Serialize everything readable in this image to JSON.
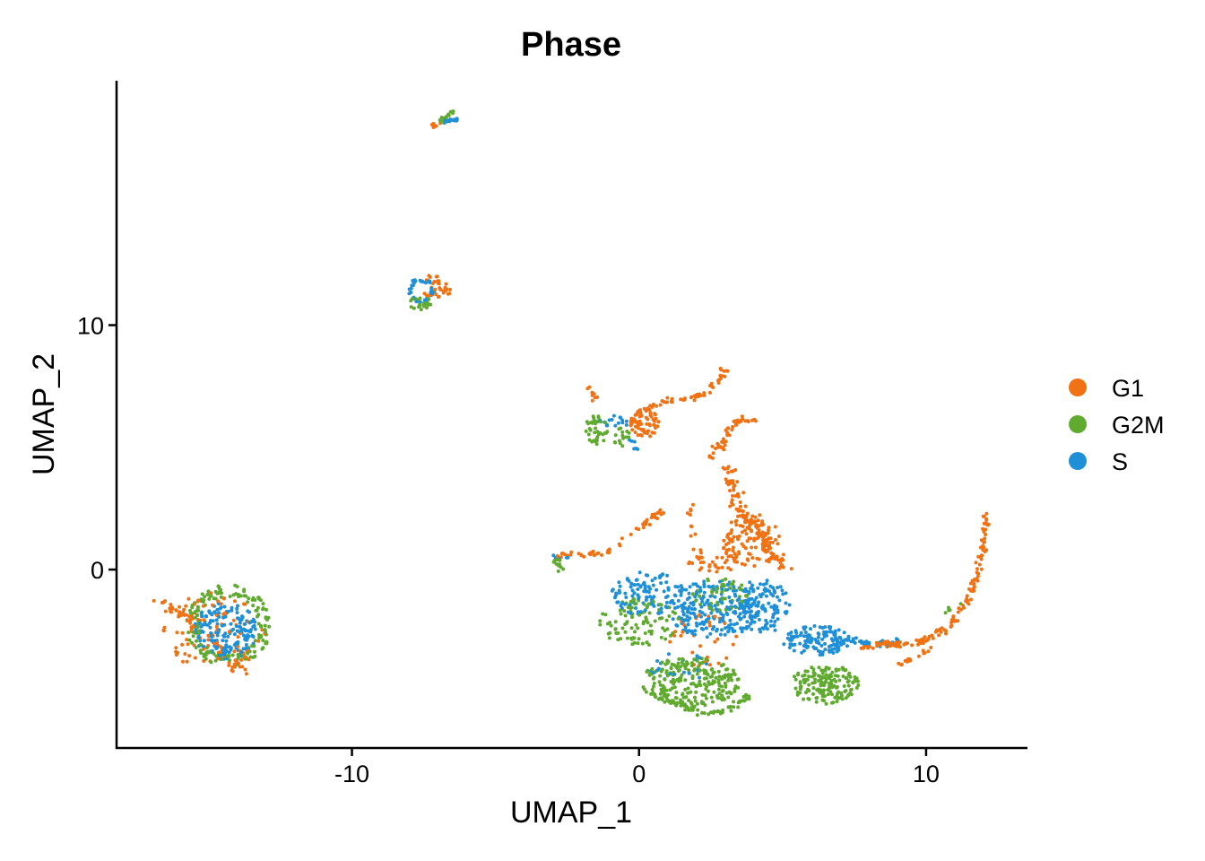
{
  "chart_data": {
    "type": "scatter",
    "title": "Phase",
    "xlabel": "UMAP_1",
    "ylabel": "UMAP_2",
    "xlim": [
      -18.2,
      13.5
    ],
    "ylim": [
      -7.3,
      20.0
    ],
    "xticks": [
      -10,
      0,
      10
    ],
    "yticks": [
      0,
      10
    ],
    "legend_position": "right",
    "series": [
      {
        "name": "G1",
        "color": "#F07214"
      },
      {
        "name": "G2M",
        "color": "#60AA30"
      },
      {
        "name": "S",
        "color": "#1F90D8"
      }
    ],
    "clusters": [
      {
        "series": "G1",
        "kind": "blob",
        "cx": -14.8,
        "cy": -2.5,
        "rx": 1.8,
        "ry": 1.6,
        "n": 80
      },
      {
        "series": "G1",
        "kind": "path",
        "points": [
          [
            -16.8,
            -1.3
          ],
          [
            -15.8,
            -1.9
          ],
          [
            -15.0,
            -2.8
          ],
          [
            -14.2,
            -3.9
          ],
          [
            -13.6,
            -4.1
          ]
        ],
        "spread": 0.25,
        "n": 60
      },
      {
        "series": "G2M",
        "kind": "ring",
        "cx": -14.3,
        "cy": -2.3,
        "rx": 1.4,
        "ry": 1.6,
        "n": 160
      },
      {
        "series": "S",
        "kind": "blob",
        "cx": -14.4,
        "cy": -2.5,
        "rx": 1.1,
        "ry": 1.2,
        "n": 180
      },
      {
        "series": "G1",
        "kind": "blob",
        "cx": -7.1,
        "cy": 11.6,
        "rx": 0.5,
        "ry": 0.5,
        "n": 25
      },
      {
        "series": "G1",
        "kind": "path",
        "points": [
          [
            -7.3,
            11.9
          ],
          [
            -6.8,
            11.5
          ],
          [
            -6.4,
            11.1
          ]
        ],
        "spread": 0.12,
        "n": 10
      },
      {
        "series": "G2M",
        "kind": "blob",
        "cx": -7.6,
        "cy": 10.9,
        "rx": 0.4,
        "ry": 0.3,
        "n": 25
      },
      {
        "series": "S",
        "kind": "ring",
        "cx": -7.6,
        "cy": 11.4,
        "rx": 0.45,
        "ry": 0.5,
        "n": 40
      },
      {
        "series": "G1",
        "kind": "path",
        "points": [
          [
            -7.2,
            18.1
          ],
          [
            -6.9,
            18.3
          ]
        ],
        "spread": 0.08,
        "n": 8
      },
      {
        "series": "G2M",
        "kind": "path",
        "points": [
          [
            -6.9,
            18.3
          ],
          [
            -6.5,
            18.7
          ]
        ],
        "spread": 0.08,
        "n": 15
      },
      {
        "series": "S",
        "kind": "path",
        "points": [
          [
            -6.8,
            18.3
          ],
          [
            -6.3,
            18.4
          ]
        ],
        "spread": 0.08,
        "n": 15
      },
      {
        "series": "G2M",
        "kind": "blob",
        "cx": -1.5,
        "cy": 5.7,
        "rx": 0.4,
        "ry": 0.6,
        "n": 40
      },
      {
        "series": "G2M",
        "kind": "blob",
        "cx": -0.6,
        "cy": 5.4,
        "rx": 0.3,
        "ry": 0.4,
        "n": 15
      },
      {
        "series": "G1",
        "kind": "path",
        "points": [
          [
            -1.8,
            7.4
          ],
          [
            -1.6,
            7.1
          ],
          [
            -1.5,
            6.9
          ]
        ],
        "spread": 0.1,
        "n": 8
      },
      {
        "series": "S",
        "kind": "blob",
        "cx": -0.9,
        "cy": 6.0,
        "rx": 0.5,
        "ry": 0.3,
        "n": 15
      },
      {
        "series": "G1",
        "kind": "blob",
        "cx": 0.2,
        "cy": 6.0,
        "rx": 0.5,
        "ry": 0.6,
        "n": 70
      },
      {
        "series": "G1",
        "kind": "path",
        "points": [
          [
            0.3,
            6.6
          ],
          [
            1.0,
            6.9
          ],
          [
            1.8,
            7.0
          ],
          [
            2.4,
            7.2
          ],
          [
            2.8,
            7.8
          ],
          [
            3.1,
            8.3
          ]
        ],
        "spread": 0.12,
        "n": 50
      },
      {
        "series": "S",
        "kind": "path",
        "points": [
          [
            -0.3,
            5.3
          ],
          [
            -0.1,
            4.8
          ]
        ],
        "spread": 0.1,
        "n": 6
      },
      {
        "series": "G1",
        "kind": "path",
        "points": [
          [
            2.9,
            4.9
          ],
          [
            3.1,
            5.7
          ],
          [
            3.5,
            6.1
          ],
          [
            4.0,
            6.1
          ]
        ],
        "spread": 0.12,
        "n": 35
      },
      {
        "series": "G1",
        "kind": "path",
        "points": [
          [
            2.5,
            4.6
          ],
          [
            2.8,
            5.2
          ]
        ],
        "spread": 0.15,
        "n": 10
      },
      {
        "series": "G1",
        "kind": "path",
        "points": [
          [
            3.2,
            4.2
          ],
          [
            3.3,
            3.2
          ],
          [
            3.6,
            2.3
          ],
          [
            4.2,
            1.6
          ],
          [
            4.5,
            0.8
          ],
          [
            5.0,
            0.1
          ]
        ],
        "spread": 0.25,
        "n": 120
      },
      {
        "series": "G1",
        "kind": "blob",
        "cx": 3.9,
        "cy": 1.2,
        "rx": 1.0,
        "ry": 1.1,
        "n": 100
      },
      {
        "series": "G1",
        "kind": "blob",
        "cx": 2.6,
        "cy": 0.4,
        "rx": 0.9,
        "ry": 0.6,
        "n": 40
      },
      {
        "series": "G1",
        "kind": "path",
        "points": [
          [
            -3.0,
            0.6
          ],
          [
            -2.0,
            0.6
          ],
          [
            -1.2,
            0.7
          ],
          [
            -0.5,
            1.2
          ],
          [
            0.1,
            1.8
          ],
          [
            0.5,
            2.1
          ],
          [
            0.8,
            2.5
          ]
        ],
        "spread": 0.12,
        "n": 60
      },
      {
        "series": "G1",
        "kind": "path",
        "points": [
          [
            1.8,
            2.7
          ],
          [
            1.8,
            1.8
          ],
          [
            1.9,
            0.9
          ]
        ],
        "spread": 0.12,
        "n": 10
      },
      {
        "series": "G2M",
        "kind": "blob",
        "cx": -2.8,
        "cy": 0.2,
        "rx": 0.2,
        "ry": 0.3,
        "n": 12
      },
      {
        "series": "S",
        "kind": "path",
        "points": [
          [
            -3.0,
            0.5
          ],
          [
            -2.4,
            0.5
          ]
        ],
        "spread": 0.08,
        "n": 6
      },
      {
        "series": "S",
        "kind": "blob",
        "cx": 0.3,
        "cy": -1.0,
        "rx": 1.3,
        "ry": 0.9,
        "n": 110
      },
      {
        "series": "S",
        "kind": "blob",
        "cx": 2.6,
        "cy": -1.6,
        "rx": 1.6,
        "ry": 1.2,
        "n": 220
      },
      {
        "series": "S",
        "kind": "blob",
        "cx": 4.3,
        "cy": -1.5,
        "rx": 1.0,
        "ry": 1.1,
        "n": 120
      },
      {
        "series": "S",
        "kind": "blob",
        "cx": 6.2,
        "cy": -2.9,
        "rx": 1.2,
        "ry": 0.6,
        "n": 130
      },
      {
        "series": "S",
        "kind": "path",
        "points": [
          [
            7.2,
            -2.9
          ],
          [
            8.0,
            -3.0
          ],
          [
            8.6,
            -3.0
          ]
        ],
        "spread": 0.12,
        "n": 25
      },
      {
        "series": "G1",
        "kind": "path",
        "points": [
          [
            7.8,
            -3.2
          ],
          [
            8.6,
            -3.0
          ],
          [
            9.4,
            -3.1
          ],
          [
            10.2,
            -2.8
          ],
          [
            10.9,
            -2.2
          ],
          [
            11.4,
            -1.4
          ],
          [
            11.8,
            -0.2
          ],
          [
            12.0,
            1.0
          ],
          [
            12.1,
            2.2
          ]
        ],
        "spread": 0.12,
        "n": 150
      },
      {
        "series": "G1",
        "kind": "path",
        "points": [
          [
            9.0,
            -3.9
          ],
          [
            9.6,
            -3.6
          ],
          [
            10.2,
            -3.2
          ]
        ],
        "spread": 0.1,
        "n": 15
      },
      {
        "series": "G2M",
        "kind": "blob",
        "cx": 0.0,
        "cy": -2.2,
        "rx": 1.4,
        "ry": 1.0,
        "n": 100
      },
      {
        "series": "G2M",
        "kind": "blob",
        "cx": 1.8,
        "cy": -4.6,
        "rx": 1.7,
        "ry": 1.0,
        "n": 240
      },
      {
        "series": "G2M",
        "kind": "path",
        "points": [
          [
            0.6,
            -5.1
          ],
          [
            1.5,
            -5.6
          ],
          [
            2.5,
            -5.9
          ],
          [
            3.2,
            -5.7
          ],
          [
            3.8,
            -5.2
          ]
        ],
        "spread": 0.15,
        "n": 60
      },
      {
        "series": "G2M",
        "kind": "blob",
        "cx": 6.5,
        "cy": -4.7,
        "rx": 1.2,
        "ry": 0.8,
        "n": 160
      },
      {
        "series": "G2M",
        "kind": "blob",
        "cx": 2.8,
        "cy": -1.0,
        "rx": 1.0,
        "ry": 0.7,
        "n": 50
      },
      {
        "series": "G1",
        "kind": "blob",
        "cx": 2.2,
        "cy": -2.9,
        "rx": 1.2,
        "ry": 1.1,
        "n": 30
      },
      {
        "series": "S",
        "kind": "blob",
        "cx": 1.4,
        "cy": -4.0,
        "rx": 1.0,
        "ry": 0.8,
        "n": 20
      },
      {
        "series": "G2M",
        "kind": "path",
        "points": [
          [
            10.6,
            -1.8
          ],
          [
            11.3,
            -1.2
          ]
        ],
        "spread": 0.1,
        "n": 5
      },
      {
        "series": "S",
        "kind": "blob",
        "cx": 9.0,
        "cy": -2.9,
        "rx": 0.2,
        "ry": 0.2,
        "n": 3
      }
    ]
  }
}
